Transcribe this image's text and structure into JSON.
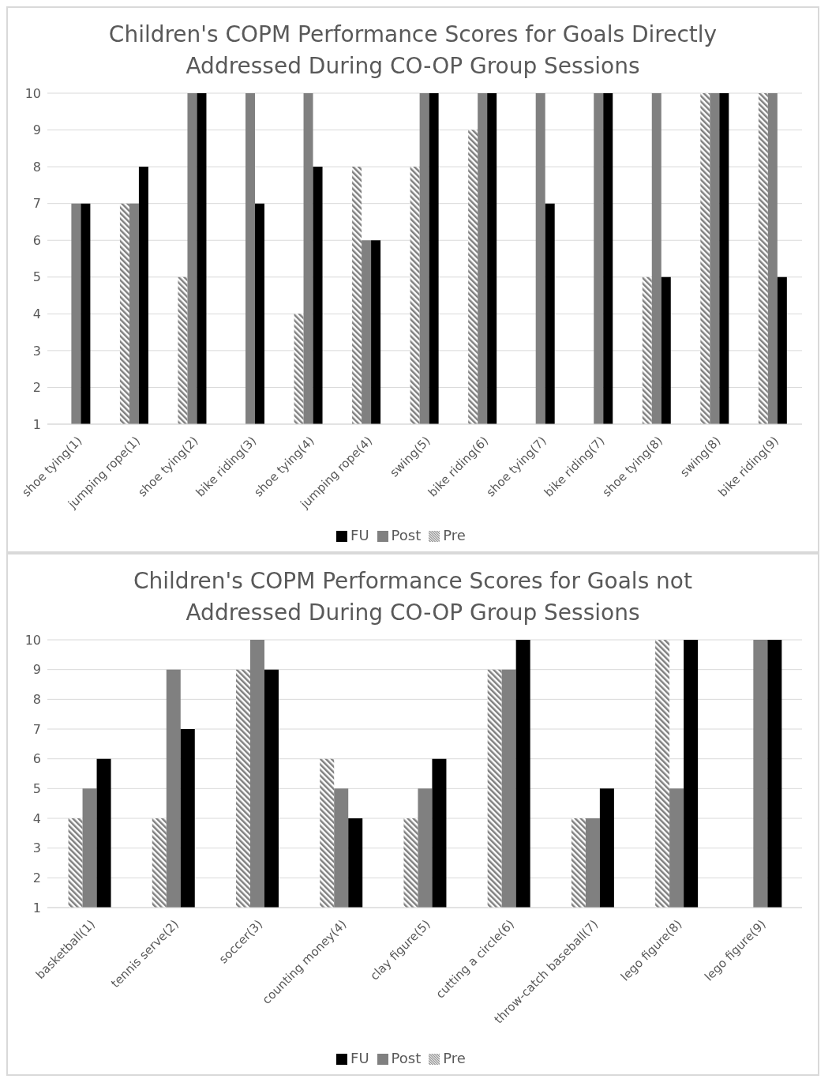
{
  "chart_data": [
    {
      "type": "bar",
      "title": "Children's COPM Performance Scores for Goals Directly Addressed During CO-OP Group Sessions",
      "categories": [
        "shoe tying(1)",
        "jumping rope(1)",
        "shoe tying(2)",
        "bike riding(3)",
        "shoe tying(4)",
        "jumping rope(4)",
        "swing(5)",
        "bike riding(6)",
        "shoe tying(7)",
        "bike riding(7)",
        "shoe tying(8)",
        "swing(8)",
        "bike riding(9)"
      ],
      "series": [
        {
          "name": "Pre",
          "color": "#7f7f7f",
          "values": [
            1,
            7,
            5,
            1,
            4,
            8,
            8,
            9,
            1,
            1,
            5,
            10,
            10
          ]
        },
        {
          "name": "Post",
          "color": "#808080",
          "values": [
            7,
            7,
            10,
            10,
            10,
            6,
            10,
            10,
            10,
            10,
            10,
            10,
            10
          ]
        },
        {
          "name": "FU",
          "color": "#000000",
          "values": [
            7,
            8,
            10,
            7,
            8,
            6,
            10,
            10,
            7,
            10,
            5,
            10,
            5
          ]
        }
      ],
      "ylim": [
        1,
        10
      ],
      "yticks": [
        1,
        2,
        3,
        4,
        5,
        6,
        7,
        8,
        9,
        10
      ],
      "grid": "y",
      "legend": "bottom"
    },
    {
      "type": "bar",
      "title": "Children's COPM Performance Scores for Goals not Addressed During CO-OP Group Sessions",
      "categories": [
        "basketball(1)",
        "tennis serve(2)",
        "soccer(3)",
        "counting money(4)",
        "clay figure(5)",
        "cutting a circle(6)",
        "throw-catch baseball(7)",
        "lego figure(8)",
        "lego figure(9)"
      ],
      "series": [
        {
          "name": "Pre",
          "color": "#7f7f7f",
          "values": [
            4,
            4,
            9,
            6,
            4,
            9,
            4,
            10,
            1
          ]
        },
        {
          "name": "Post",
          "color": "#808080",
          "values": [
            5,
            9,
            10,
            5,
            5,
            9,
            4,
            5,
            10
          ]
        },
        {
          "name": "FU",
          "color": "#000000",
          "values": [
            6,
            7,
            9,
            4,
            6,
            10,
            5,
            10,
            10
          ]
        }
      ],
      "ylim": [
        1,
        10
      ],
      "yticks": [
        1,
        2,
        3,
        4,
        5,
        6,
        7,
        8,
        9,
        10
      ],
      "grid": "y",
      "legend": "bottom"
    }
  ]
}
